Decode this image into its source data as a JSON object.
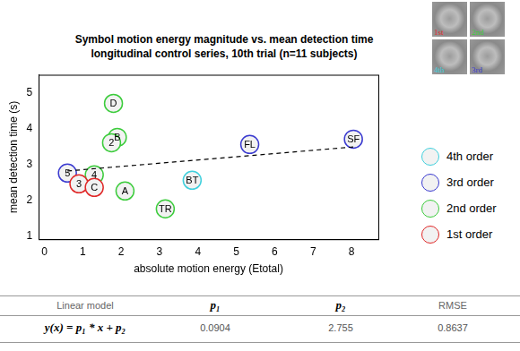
{
  "chart_data": {
    "type": "scatter",
    "title": "Symbol motion energy magnitude vs. mean detection time",
    "subtitle": "longitudinal control series, 10th trial (n=11 subjects)",
    "x_label": "absolute motion energy (Etotal)",
    "y_label": "mean detection time (s)",
    "xlim": [
      -0.15,
      8.7
    ],
    "ylim": [
      0.9,
      5.5
    ],
    "xticks": [
      0,
      1,
      2,
      3,
      4,
      5,
      6,
      7,
      8
    ],
    "yticks": [
      1,
      2,
      3,
      4,
      5
    ],
    "grid": false,
    "legend": "right",
    "series": [
      {
        "name": "4th order",
        "color": "#3fd0dd",
        "marker": "circle",
        "labels": [
          "BT"
        ],
        "x": [
          3.85
        ],
        "y": [
          2.55
        ]
      },
      {
        "name": "3rd order",
        "color": "#3a3ad0",
        "marker": "circle",
        "labels": [
          "5",
          "FL",
          "SF"
        ],
        "x": [
          0.6,
          5.35,
          8.05
        ],
        "y": [
          2.75,
          3.55,
          3.7
        ]
      },
      {
        "name": "2nd order",
        "color": "#3ccc3c",
        "marker": "circle",
        "labels": [
          "D",
          "B",
          "2",
          "4",
          "A",
          "TR"
        ],
        "x": [
          1.8,
          1.9,
          1.75,
          1.3,
          2.1,
          3.15
        ],
        "y": [
          4.7,
          3.75,
          3.6,
          2.7,
          2.25,
          1.75
        ]
      },
      {
        "name": "1st order",
        "color": "#e02828",
        "marker": "circle",
        "labels": [
          "3",
          "C"
        ],
        "x": [
          0.9,
          1.3
        ],
        "y": [
          2.45,
          2.35
        ]
      }
    ]
  },
  "thumbnails": [
    {
      "label": "1st",
      "color": "#e02828"
    },
    {
      "label": "2nd",
      "color": "#3ccc3c"
    },
    {
      "label": "4th",
      "color": "#3fd0dd"
    },
    {
      "label": "3rd",
      "color": "#3a3ad0"
    }
  ],
  "table": {
    "header": [
      "Linear model",
      "p₁",
      "p₂",
      "RMSE"
    ],
    "rows": [
      [
        "y(x) = p₁ * x + p₂",
        0.0904,
        2.755,
        0.8637
      ]
    ]
  }
}
